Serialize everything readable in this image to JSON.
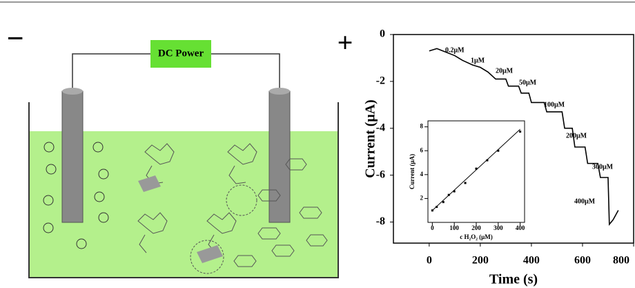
{
  "diagram": {
    "minus": "−",
    "plus": "+",
    "power_label": "DC Power"
  },
  "chart_data": [
    {
      "type": "line",
      "color": "#000000",
      "xlabel": "Time (s)",
      "ylabel": "Current (μA)",
      "xlim": [
        -140,
        800
      ],
      "ylim": [
        -8.9,
        0
      ],
      "xticks": [
        0,
        200,
        400,
        600,
        800
      ],
      "yticks": [
        0,
        -2,
        -4,
        -6,
        -8
      ],
      "x": [
        0,
        30,
        100,
        130,
        170,
        200,
        230,
        260,
        300,
        310,
        350,
        360,
        390,
        400,
        450,
        460,
        520,
        530,
        560,
        570,
        610,
        620,
        660,
        670,
        700,
        705,
        720,
        740
      ],
      "values": [
        -0.7,
        -0.6,
        -0.9,
        -1.1,
        -1.3,
        -1.4,
        -1.6,
        -1.9,
        -1.9,
        -2.2,
        -2.2,
        -2.5,
        -2.5,
        -2.9,
        -2.9,
        -3.3,
        -3.3,
        -4.0,
        -4.0,
        -4.8,
        -4.8,
        -5.5,
        -5.5,
        -6.1,
        -6.1,
        -8.1,
        -7.9,
        -7.5
      ],
      "annotations": [
        "0.2μM",
        "1μM",
        "20μM",
        "50μM",
        "100μM",
        "200μM",
        "300μM",
        "400μM"
      ]
    },
    {
      "type": "scatter",
      "color": "#000000",
      "xlabel": "c H₂O₂ (μM)",
      "ylabel": "Current (μA)",
      "xlim": [
        -20,
        420
      ],
      "ylim": [
        0,
        8.5
      ],
      "xticks": [
        0,
        100,
        200,
        300,
        400
      ],
      "yticks": [
        2,
        4,
        6,
        8
      ],
      "x": [
        0,
        20,
        50,
        75,
        100,
        150,
        200,
        250,
        300,
        400
      ],
      "values": [
        1.0,
        1.3,
        1.7,
        2.3,
        2.6,
        3.3,
        4.5,
        5.2,
        6.0,
        7.6
      ],
      "fit": {
        "x": [
          0,
          400
        ],
        "values": [
          1.0,
          7.8
        ]
      }
    }
  ]
}
